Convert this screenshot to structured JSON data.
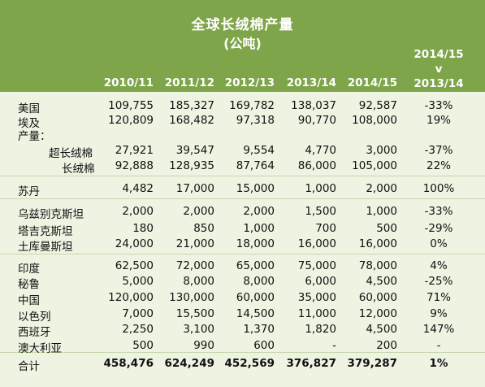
{
  "title": "全球长绒棉产量",
  "subtitle": "(公吨)",
  "columns": [
    "2010/11",
    "2011/12",
    "2012/13",
    "2013/14",
    "2014/15"
  ],
  "comparison_header": {
    "line1": "2014/15",
    "line2": "v",
    "line3": "2013/14"
  },
  "rows": [
    {
      "label": "美国",
      "values": [
        "109,755",
        "185,327",
        "169,782",
        "138,037",
        "92,587"
      ],
      "pct": "-33%"
    },
    {
      "label": "埃及",
      "values": [
        "120,809",
        "168,482",
        "97,318",
        "90,770",
        "108,000"
      ],
      "pct": "19%"
    },
    {
      "label": "产量：",
      "values": [
        "",
        "",
        "",
        "",
        ""
      ],
      "pct": ""
    },
    {
      "label": "超长绒棉",
      "values": [
        "27,921",
        "39,547",
        "9,554",
        "4,770",
        "3,000"
      ],
      "pct": "-37%"
    },
    {
      "label": "长绒棉",
      "values": [
        "92,888",
        "128,935",
        "87,764",
        "86,000",
        "105,000"
      ],
      "pct": "22%"
    },
    {
      "label": "苏丹",
      "values": [
        "4,482",
        "17,000",
        "15,000",
        "1,000",
        "2,000"
      ],
      "pct": "100%"
    },
    {
      "label": "乌兹别克斯坦",
      "values": [
        "2,000",
        "2,000",
        "2,000",
        "1,500",
        "1,000"
      ],
      "pct": "-33%"
    },
    {
      "label": "塔吉克斯坦",
      "values": [
        "180",
        "850",
        "1,000",
        "700",
        "500"
      ],
      "pct": "-29%"
    },
    {
      "label": "土库曼斯坦",
      "values": [
        "24,000",
        "21,000",
        "18,000",
        "16,000",
        "16,000"
      ],
      "pct": "0%"
    },
    {
      "label": "印度",
      "values": [
        "62,500",
        "72,000",
        "65,000",
        "75,000",
        "78,000"
      ],
      "pct": "4%"
    },
    {
      "label": "秘鲁",
      "values": [
        "5,000",
        "8,000",
        "8,000",
        "6,000",
        "4,500"
      ],
      "pct": "-25%"
    },
    {
      "label": "中国",
      "values": [
        "120,000",
        "130,000",
        "60,000",
        "35,000",
        "60,000"
      ],
      "pct": "71%"
    },
    {
      "label": "以色列",
      "values": [
        "7,000",
        "15,500",
        "14,500",
        "11,000",
        "12,000"
      ],
      "pct": "9%"
    },
    {
      "label": "西班牙",
      "values": [
        "2,250",
        "3,100",
        "1,370",
        "1,820",
        "4,500"
      ],
      "pct": "147%"
    },
    {
      "label": "澳大利亚",
      "values": [
        "500",
        "990",
        "600",
        "-",
        "200"
      ],
      "pct": "-"
    },
    {
      "label": "合计",
      "values": [
        "458,476",
        "624,249",
        "452,569",
        "376,827",
        "379,287"
      ],
      "pct": "1%"
    }
  ]
}
